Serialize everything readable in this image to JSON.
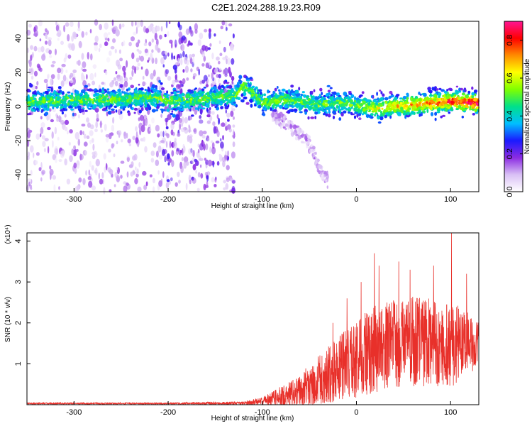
{
  "title": "C2E1.2024.288.19.23.R09",
  "colors": {
    "snr_line": "#e8302a",
    "axis": "#000000",
    "background": "#ffffff",
    "colorbar": [
      "#ffffff",
      "#d9c0f5",
      "#8b2be2",
      "#1a1aff",
      "#00bfff",
      "#00e08a",
      "#7fff00",
      "#ffff00",
      "#ff8c00",
      "#ff0000",
      "#ff1493"
    ]
  },
  "chart_data": [
    {
      "type": "heatmap",
      "xlabel": "Height of straight line (km)",
      "ylabel": "Frequency (Hz)",
      "xlim": [
        -350,
        130
      ],
      "ylim": [
        -50,
        50
      ],
      "xticks": [
        -300,
        -200,
        -100,
        0,
        100
      ],
      "yticks": [
        -40,
        -20,
        0,
        20,
        40
      ],
      "colorbar": {
        "label": "Normalized spectral amplitude",
        "range": [
          0,
          0.9
        ],
        "ticks": [
          "0.0",
          "0.2",
          "0.4",
          "0.6",
          "0.8"
        ]
      },
      "features": {
        "noisy_region_x": [
          -350,
          -130
        ],
        "dense_noise_x": [
          -205,
          -130
        ],
        "signal_band_center_hz": [
          {
            "x": -350,
            "y": 3
          },
          {
            "x": -280,
            "y": 4
          },
          {
            "x": -210,
            "y": 5
          },
          {
            "x": -200,
            "y": 3
          },
          {
            "x": -130,
            "y": 6
          },
          {
            "x": -120,
            "y": 12
          },
          {
            "x": -110,
            "y": 8
          },
          {
            "x": -100,
            "y": 2
          },
          {
            "x": -80,
            "y": 4
          },
          {
            "x": -60,
            "y": 3
          },
          {
            "x": -40,
            "y": 1
          },
          {
            "x": -20,
            "y": 2
          },
          {
            "x": 0,
            "y": 1
          },
          {
            "x": 20,
            "y": -1
          },
          {
            "x": 40,
            "y": 0
          },
          {
            "x": 60,
            "y": 1
          },
          {
            "x": 80,
            "y": 2
          },
          {
            "x": 100,
            "y": 3
          },
          {
            "x": 130,
            "y": 2
          }
        ],
        "secondary_branch": [
          {
            "x": -90,
            "y": -4
          },
          {
            "x": -70,
            "y": -12
          },
          {
            "x": -50,
            "y": -22
          },
          {
            "x": -40,
            "y": -35
          },
          {
            "x": -30,
            "y": -44
          }
        ]
      }
    },
    {
      "type": "line",
      "xlabel": "Height of straight line (km)",
      "ylabel": "SNR (10 * v/v)",
      "multiplier": "(x10⁴)",
      "xlim": [
        -350,
        130
      ],
      "ylim": [
        0,
        4.2
      ],
      "xticks": [
        -300,
        -200,
        -100,
        0,
        100
      ],
      "yticks": [
        1,
        2,
        3,
        4
      ],
      "series": [
        {
          "envelope": [
            {
              "x": -350,
              "mean": 0.03,
              "amp": 0.02
            },
            {
              "x": -200,
              "mean": 0.03,
              "amp": 0.02
            },
            {
              "x": -120,
              "mean": 0.04,
              "amp": 0.04
            },
            {
              "x": -100,
              "mean": 0.08,
              "amp": 0.1
            },
            {
              "x": -80,
              "mean": 0.2,
              "amp": 0.25
            },
            {
              "x": -60,
              "mean": 0.35,
              "amp": 0.4
            },
            {
              "x": -40,
              "mean": 0.6,
              "amp": 0.6
            },
            {
              "x": -20,
              "mean": 0.85,
              "amp": 0.8
            },
            {
              "x": 0,
              "mean": 1.1,
              "amp": 1.0
            },
            {
              "x": 20,
              "mean": 1.4,
              "amp": 1.1
            },
            {
              "x": 40,
              "mean": 1.5,
              "amp": 1.1
            },
            {
              "x": 60,
              "mean": 1.55,
              "amp": 1.1
            },
            {
              "x": 80,
              "mean": 1.5,
              "amp": 1.1
            },
            {
              "x": 100,
              "mean": 1.5,
              "amp": 1.1
            },
            {
              "x": 130,
              "mean": 1.5,
              "amp": 0.6
            }
          ],
          "peaks": [
            {
              "x": 19,
              "y": 3.7
            },
            {
              "x": 5,
              "y": 3.0
            },
            {
              "x": 24,
              "y": 3.4
            },
            {
              "x": 45,
              "y": 3.5
            },
            {
              "x": 57,
              "y": 3.3
            },
            {
              "x": 82,
              "y": 3.4
            },
            {
              "x": 101,
              "y": 4.2
            },
            {
              "x": 117,
              "y": 3.2
            },
            {
              "x": -10,
              "y": 2.6
            },
            {
              "x": -25,
              "y": 2.0
            }
          ]
        }
      ]
    }
  ]
}
